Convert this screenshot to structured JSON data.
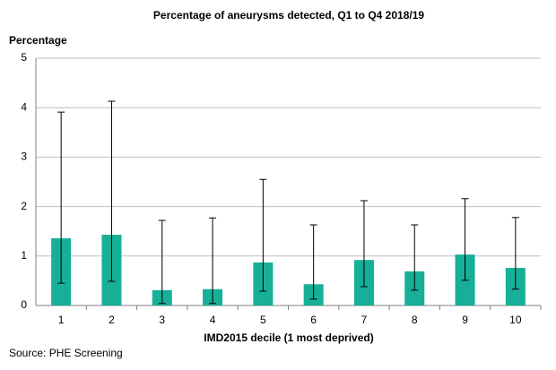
{
  "chart_data": {
    "type": "bar",
    "title": "Percentage of aneurysms detected, Q1 to Q4 2018/19",
    "y_label": "Percentage",
    "x_label": "IMD2015 decile (1 most deprived)",
    "source": "Source: PHE Screening",
    "categories": [
      "1",
      "2",
      "3",
      "4",
      "5",
      "6",
      "7",
      "8",
      "9",
      "10"
    ],
    "values": [
      1.36,
      1.43,
      0.31,
      0.33,
      0.87,
      0.43,
      0.92,
      0.69,
      1.03,
      0.76
    ],
    "lower": [
      0.45,
      0.49,
      0.04,
      0.04,
      0.29,
      0.13,
      0.38,
      0.31,
      0.51,
      0.33
    ],
    "upper": [
      3.91,
      4.13,
      1.72,
      1.77,
      2.55,
      1.63,
      2.12,
      1.63,
      2.16,
      1.78
    ],
    "color": "#17af98",
    "ylim": [
      0,
      5
    ],
    "yticks": [
      0,
      1,
      2,
      3,
      4,
      5
    ],
    "grid": true
  }
}
